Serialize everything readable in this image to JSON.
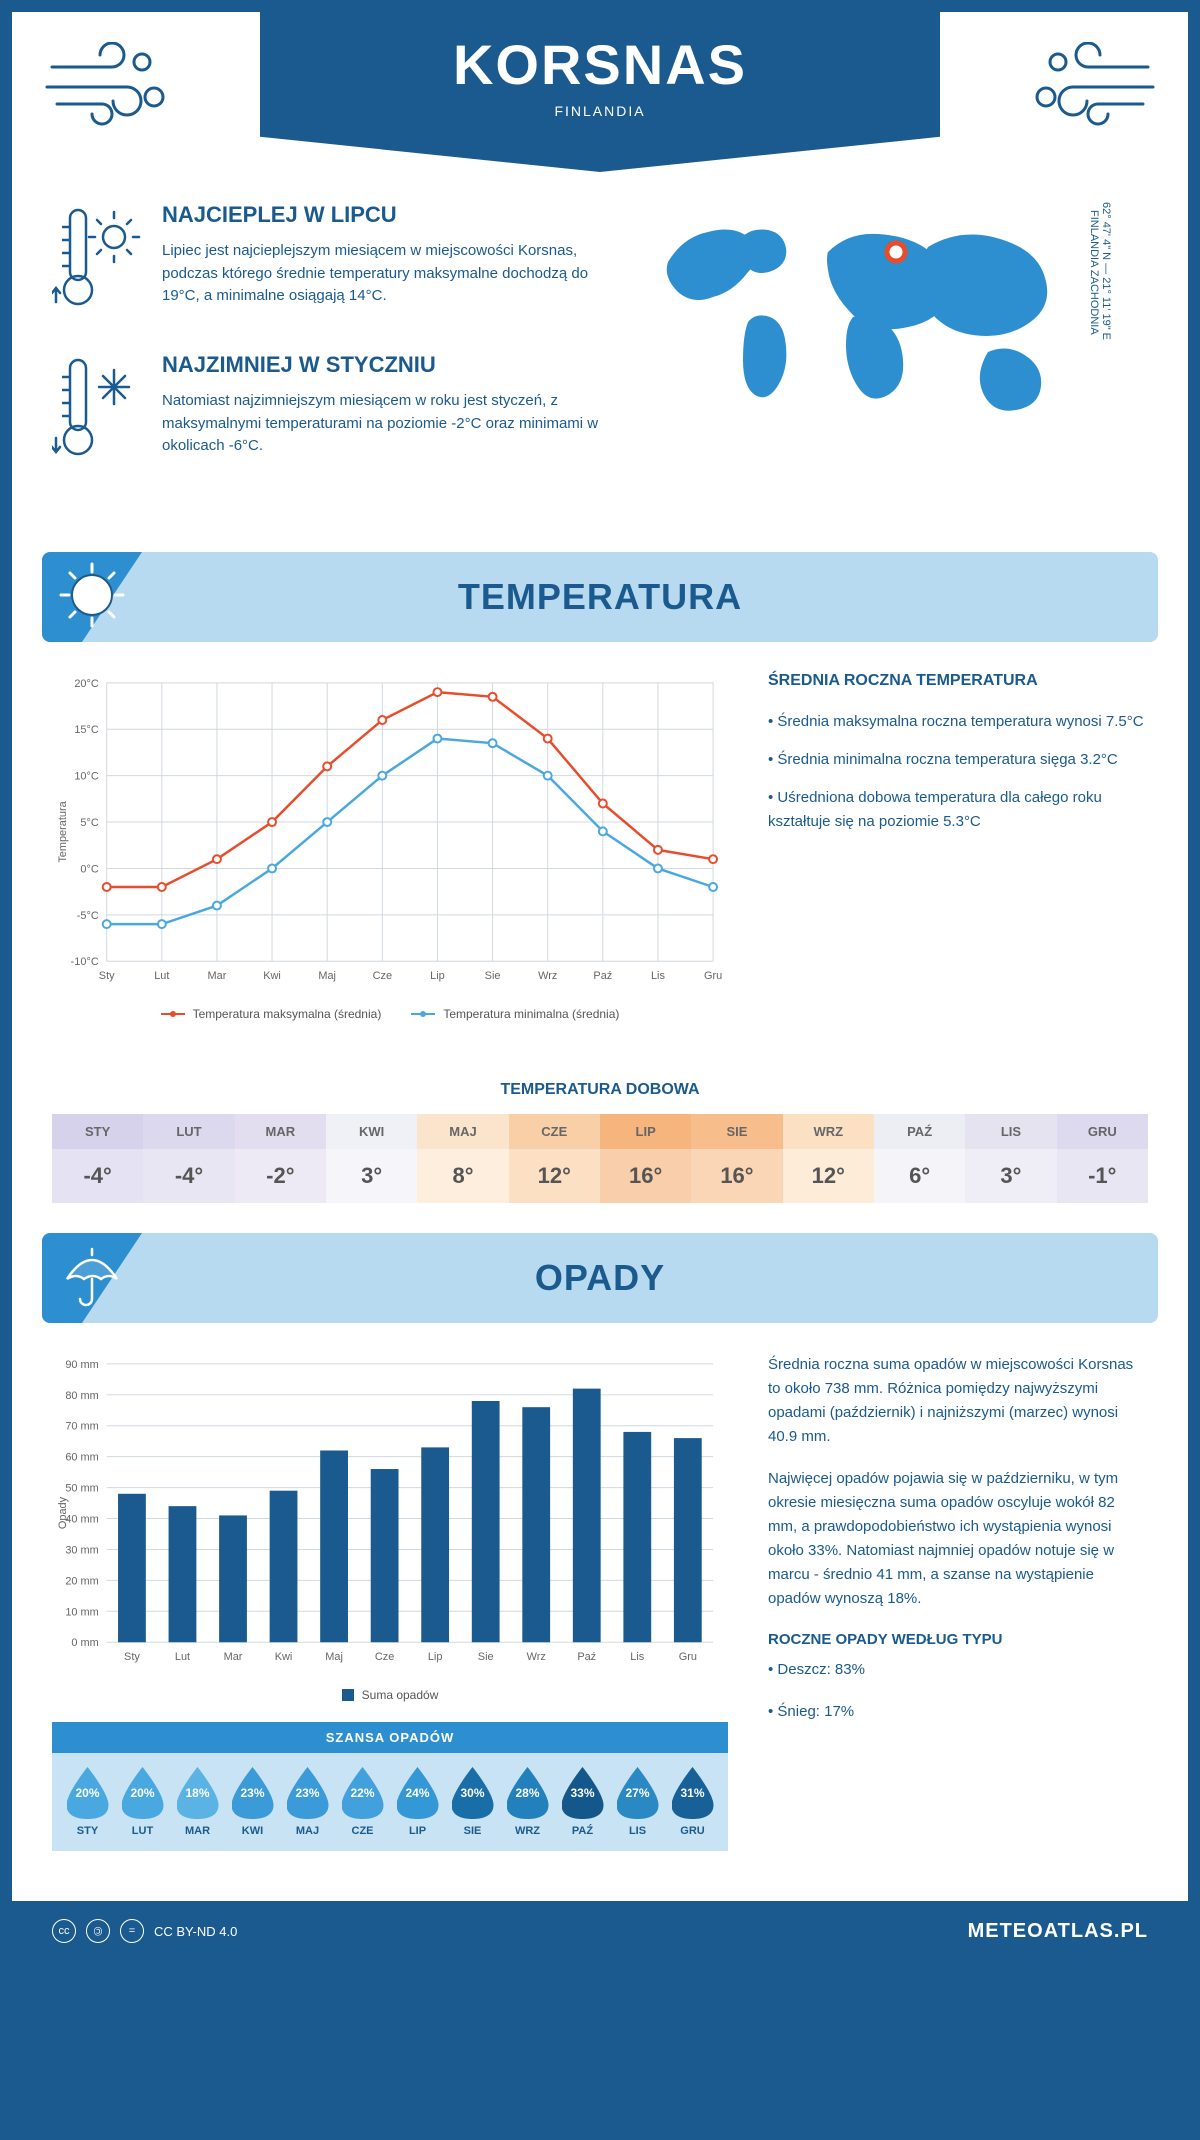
{
  "header": {
    "city": "KORSNAS",
    "country": "FINLANDIA"
  },
  "coords": {
    "line": "62° 47' 4\" N — 21° 11' 19\" E",
    "region": "FINLANDIA ZACHODNIA"
  },
  "highlights": {
    "warm": {
      "title": "NAJCIEPLEJ W LIPCU",
      "text": "Lipiec jest najcieplejszym miesiącem w miejscowości Korsnas, podczas którego średnie temperatury maksymalne dochodzą do 19°C, a minimalne osiągają 14°C."
    },
    "cold": {
      "title": "NAJZIMNIEJ W STYCZNIU",
      "text": "Natomiast najzimniejszym miesiącem w roku jest styczeń, z maksymalnymi temperaturami na poziomie -2°C oraz minimami w okolicach -6°C."
    }
  },
  "sections": {
    "temp": "TEMPERATURA",
    "precip": "OPADY"
  },
  "temp_chart": {
    "type": "line",
    "months": [
      "Sty",
      "Lut",
      "Mar",
      "Kwi",
      "Maj",
      "Cze",
      "Lip",
      "Sie",
      "Wrz",
      "Paź",
      "Lis",
      "Gru"
    ],
    "ylabel": "Temperatura",
    "ylim": [
      -10,
      20
    ],
    "ytick_step": 5,
    "ytick_labels": [
      "-10°C",
      "-5°C",
      "0°C",
      "5°C",
      "10°C",
      "15°C",
      "20°C"
    ],
    "series": [
      {
        "name": "Temperatura maksymalna (średnia)",
        "color": "#e84c2b",
        "values": [
          -2,
          -2,
          1,
          5,
          11,
          16,
          19,
          18.5,
          14,
          7,
          2,
          1
        ]
      },
      {
        "name": "Temperatura minimalna (średnia)",
        "color": "#4aa8e0",
        "values": [
          -6,
          -6,
          -4,
          0,
          5,
          10,
          14,
          13.5,
          10,
          4,
          0,
          -2
        ]
      }
    ],
    "grid_color": "#d0d8e0",
    "background_color": "#ffffff"
  },
  "temp_aside": {
    "title": "ŚREDNIA ROCZNA TEMPERATURA",
    "bullets": [
      "• Średnia maksymalna roczna temperatura wynosi 7.5°C",
      "• Średnia minimalna roczna temperatura sięga 3.2°C",
      "• Uśredniona dobowa temperatura dla całego roku kształtuje się na poziomie 5.3°C"
    ]
  },
  "daily": {
    "title": "TEMPERATURA DOBOWA",
    "months": [
      "STY",
      "LUT",
      "MAR",
      "KWI",
      "MAJ",
      "CZE",
      "LIP",
      "SIE",
      "WRZ",
      "PAŹ",
      "LIS",
      "GRU"
    ],
    "values": [
      "-4°",
      "-4°",
      "-2°",
      "3°",
      "8°",
      "12°",
      "16°",
      "16°",
      "12°",
      "6°",
      "3°",
      "-1°"
    ],
    "head_colors": [
      "#d6d2ec",
      "#dcd8ee",
      "#e2def0",
      "#f0f1f6",
      "#fbe4cc",
      "#f9cfa8",
      "#f6b57d",
      "#f7be8c",
      "#fbe0c4",
      "#edeef4",
      "#e6e3f1",
      "#ddd9ef"
    ],
    "val_colors": [
      "#e5e2f3",
      "#e9e6f4",
      "#edeaf5",
      "#f6f6fa",
      "#fdeedd",
      "#fbe0c4",
      "#f9ceab",
      "#fad6b6",
      "#fdecd8",
      "#f4f4f9",
      "#efedf6",
      "#e9e6f4"
    ]
  },
  "precip_chart": {
    "type": "bar",
    "months": [
      "Sty",
      "Lut",
      "Mar",
      "Kwi",
      "Maj",
      "Cze",
      "Lip",
      "Sie",
      "Wrz",
      "Paź",
      "Lis",
      "Gru"
    ],
    "ylabel": "Opady",
    "ylim": [
      0,
      90
    ],
    "ytick_step": 10,
    "ytick_labels": [
      "0 mm",
      "10 mm",
      "20 mm",
      "30 mm",
      "40 mm",
      "50 mm",
      "60 mm",
      "70 mm",
      "80 mm",
      "90 mm"
    ],
    "values": [
      48,
      44,
      41,
      49,
      62,
      56,
      63,
      78,
      76,
      82,
      68,
      66
    ],
    "bar_color": "#1a5a8e",
    "bar_width": 0.55,
    "grid_color": "#d0d8e0",
    "legend": "Suma opadów"
  },
  "precip_aside": {
    "p1": "Średnia roczna suma opadów w miejscowości Korsnas to około 738 mm. Różnica pomiędzy najwyższymi opadami (październik) i najniższymi (marzec) wynosi 40.9 mm.",
    "p2": "Najwięcej opadów pojawia się w październiku, w tym okresie miesięczna suma opadów oscyluje wokół 82 mm, a prawdopodobieństwo ich wystąpienia wynosi około 33%. Natomiast najmniej opadów notuje się w marcu - średnio 41 mm, a szanse na wystąpienie opadów wynoszą 18%.",
    "type_title": "ROCZNE OPADY WEDŁUG TYPU",
    "types": [
      "• Deszcz: 83%",
      "• Śnieg: 17%"
    ]
  },
  "chance": {
    "title": "SZANSA OPADÓW",
    "months": [
      "STY",
      "LUT",
      "MAR",
      "KWI",
      "MAJ",
      "CZE",
      "LIP",
      "SIE",
      "WRZ",
      "PAŹ",
      "LIS",
      "GRU"
    ],
    "values": [
      "20%",
      "20%",
      "18%",
      "23%",
      "23%",
      "22%",
      "24%",
      "30%",
      "28%",
      "33%",
      "27%",
      "31%"
    ],
    "colors": [
      "#4aa8e0",
      "#4aa8e0",
      "#5bb2e4",
      "#3a9bd8",
      "#3a9bd8",
      "#42a1dc",
      "#3497d6",
      "#1a6ea8",
      "#2280bc",
      "#14578a",
      "#2a88c2",
      "#176198"
    ]
  },
  "footer": {
    "license": "CC BY-ND 4.0",
    "site": "METEOATLAS.PL"
  }
}
